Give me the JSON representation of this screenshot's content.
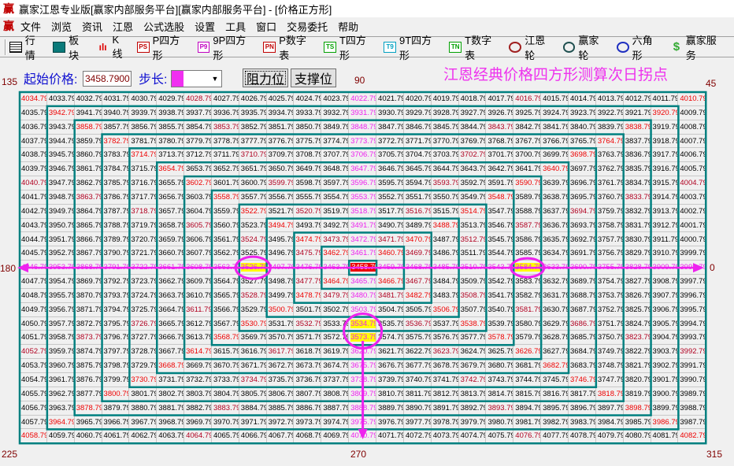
{
  "window": {
    "title": "赢家江恩专业版[赢家内部服务平台][赢家内部服务平台] - [价格正方形]",
    "logo": "赢"
  },
  "menu": [
    "文件",
    "浏览",
    "资讯",
    "江恩",
    "公式选股",
    "设置",
    "工具",
    "窗口",
    "交易委托",
    "帮助"
  ],
  "toolbar": [
    {
      "label": "行情",
      "icon": "quote-grid-icon",
      "badge": ""
    },
    {
      "label": "板块",
      "icon": "blocks-icon",
      "badge": ""
    },
    {
      "label": "K线",
      "icon": "candlestick-icon",
      "badge": ""
    },
    {
      "label": "P四方形",
      "icon": "ps-badge-icon",
      "badge": "PS",
      "color": "#c00000"
    },
    {
      "label": "9P四方形",
      "icon": "p9-badge-icon",
      "badge": "P9",
      "color": "#c000c0"
    },
    {
      "label": "P数字表",
      "icon": "pn-badge-icon",
      "badge": "PN",
      "color": "#c00000"
    },
    {
      "label": "T四方形",
      "icon": "ts-badge-icon",
      "badge": "TS",
      "color": "#00a000"
    },
    {
      "label": "9T四方形",
      "icon": "t9-badge-icon",
      "badge": "T9",
      "color": "#00a0c0"
    },
    {
      "label": "T数字表",
      "icon": "tn-badge-icon",
      "badge": "TN",
      "color": "#00a000"
    },
    {
      "label": "江恩轮",
      "icon": "gann-wheel-icon",
      "badge": ""
    },
    {
      "label": "赢家轮",
      "icon": "winner-wheel-icon",
      "badge": ""
    },
    {
      "label": "六角形",
      "icon": "hexagon-icon",
      "badge": ""
    },
    {
      "label": "赢家服务",
      "icon": "dollar-icon",
      "badge": "$"
    }
  ],
  "controls": {
    "start_price_label": "起始价格:",
    "start_price_value": "3458.7900",
    "step_label": "步长:",
    "step_color": "#f030f0",
    "resistance_button": "阻力位",
    "support_button": "支撑位"
  },
  "headline": "江恩经典价格四方形测算次日拐点",
  "angles": {
    "a135": "135",
    "a90": "90",
    "a45": "45",
    "a180": "180",
    "a0": "0",
    "a225": "225",
    "a270": "270",
    "a315": "315"
  },
  "colors": {
    "ring_border": "#008080",
    "corner": "#ee0000",
    "quarter": "#b00020",
    "axis": "#ee22ee",
    "highlight": "#ffff00",
    "center": "#ee0000"
  },
  "highlighted": [
    "3526.79",
    "3584.79",
    "3534.79",
    "3573.79"
  ],
  "center_value": "3458.79",
  "grid": [
    [
      "4034.79",
      "4033.79",
      "4032.79",
      "4031.79",
      "4030.79",
      "4029.79",
      "4028.79",
      "4027.79",
      "4026.79",
      "4025.79",
      "4024.79",
      "4023.79",
      "4022.79",
      "4021.79",
      "4020.79",
      "4019.79",
      "4018.79",
      "4017.79",
      "4016.79",
      "4015.79",
      "4014.79",
      "4013.79",
      "4012.79",
      "4011.79",
      "4010.79"
    ],
    [
      "4035.79",
      "3942.79",
      "3941.79",
      "3940.79",
      "3939.79",
      "3938.79",
      "3937.79",
      "3936.79",
      "3935.79",
      "3934.79",
      "3933.79",
      "3932.79",
      "3931.79",
      "3930.79",
      "3929.79",
      "3928.79",
      "3927.79",
      "3926.79",
      "3925.79",
      "3924.79",
      "3923.79",
      "3922.79",
      "3921.79",
      "3920.79",
      "4009.79"
    ],
    [
      "4036.79",
      "3943.79",
      "3858.79",
      "3857.79",
      "3856.79",
      "3855.79",
      "3854.79",
      "3853.79",
      "3852.79",
      "3851.79",
      "3850.79",
      "3849.79",
      "3848.79",
      "3847.79",
      "3846.79",
      "3845.79",
      "3844.79",
      "3843.79",
      "3842.79",
      "3841.79",
      "3840.79",
      "3839.79",
      "3838.79",
      "3919.79",
      "4008.79"
    ],
    [
      "4037.79",
      "3944.79",
      "3859.79",
      "3782.79",
      "3781.79",
      "3780.79",
      "3779.79",
      "3778.79",
      "3777.79",
      "3776.79",
      "3775.79",
      "3774.79",
      "3773.79",
      "3772.79",
      "3771.79",
      "3770.79",
      "3769.79",
      "3768.79",
      "3767.79",
      "3766.79",
      "3765.79",
      "3764.79",
      "3837.79",
      "3918.79",
      "4007.79"
    ],
    [
      "4038.79",
      "3945.79",
      "3860.79",
      "3783.79",
      "3714.79",
      "3713.79",
      "3712.79",
      "3711.79",
      "3710.79",
      "3709.79",
      "3708.79",
      "3707.79",
      "3706.79",
      "3705.79",
      "3704.79",
      "3703.79",
      "3702.79",
      "3701.79",
      "3700.79",
      "3699.79",
      "3698.79",
      "3763.79",
      "3836.79",
      "3917.79",
      "4006.79"
    ],
    [
      "4039.79",
      "3946.79",
      "3861.79",
      "3784.79",
      "3715.79",
      "3654.79",
      "3653.79",
      "3652.79",
      "3651.79",
      "3650.79",
      "3649.79",
      "3648.79",
      "3647.79",
      "3646.79",
      "3645.79",
      "3644.79",
      "3643.79",
      "3642.79",
      "3641.79",
      "3640.79",
      "3697.79",
      "3762.79",
      "3835.79",
      "3916.79",
      "4005.79"
    ],
    [
      "4040.79",
      "3947.79",
      "3862.79",
      "3785.79",
      "3716.79",
      "3655.79",
      "3602.79",
      "3601.79",
      "3600.79",
      "3599.79",
      "3598.79",
      "3597.79",
      "3596.79",
      "3595.79",
      "3594.79",
      "3593.79",
      "3592.79",
      "3591.79",
      "3590.79",
      "3639.79",
      "3696.79",
      "3761.79",
      "3834.79",
      "3915.79",
      "4004.79"
    ],
    [
      "4041.79",
      "3948.79",
      "3863.79",
      "3786.79",
      "3717.79",
      "3656.79",
      "3603.79",
      "3558.79",
      "3557.79",
      "3556.79",
      "3555.79",
      "3554.79",
      "3553.79",
      "3552.79",
      "3551.79",
      "3550.79",
      "3549.79",
      "3548.79",
      "3589.79",
      "3638.79",
      "3695.79",
      "3760.79",
      "3833.79",
      "3914.79",
      "4003.79"
    ],
    [
      "4042.79",
      "3949.79",
      "3864.79",
      "3787.79",
      "3718.79",
      "3657.79",
      "3604.79",
      "3559.79",
      "3522.79",
      "3521.79",
      "3520.79",
      "3519.79",
      "3518.79",
      "3517.79",
      "3516.79",
      "3515.79",
      "3514.79",
      "3547.79",
      "3588.79",
      "3637.79",
      "3694.79",
      "3759.79",
      "3832.79",
      "3913.79",
      "4002.79"
    ],
    [
      "4043.79",
      "3950.79",
      "3865.79",
      "3788.79",
      "3719.79",
      "3658.79",
      "3605.79",
      "3560.79",
      "3523.79",
      "3494.79",
      "3493.79",
      "3492.79",
      "3491.79",
      "3490.79",
      "3489.79",
      "3488.79",
      "3513.79",
      "3546.79",
      "3587.79",
      "3636.79",
      "3693.79",
      "3758.79",
      "3831.79",
      "3912.79",
      "4001.79"
    ],
    [
      "4044.79",
      "3951.79",
      "3866.79",
      "3789.79",
      "3720.79",
      "3659.79",
      "3606.79",
      "3561.79",
      "3524.79",
      "3495.79",
      "3474.79",
      "3473.79",
      "3472.79",
      "3471.79",
      "3470.79",
      "3487.79",
      "3512.79",
      "3545.79",
      "3586.79",
      "3635.79",
      "3692.79",
      "3757.79",
      "3830.79",
      "3911.79",
      "4000.79"
    ],
    [
      "4045.79",
      "3952.79",
      "3867.79",
      "3790.79",
      "3721.79",
      "3660.79",
      "3607.79",
      "3562.79",
      "3525.79",
      "3496.79",
      "3475.79",
      "3462.79",
      "3461.79",
      "3460.79",
      "3469.79",
      "3486.79",
      "3511.79",
      "3544.79",
      "3585.79",
      "3634.79",
      "3691.79",
      "3756.79",
      "3829.79",
      "3910.79",
      "3999.79"
    ],
    [
      "4046.79",
      "3953.79",
      "3868.79",
      "3791.79",
      "3722.79",
      "3661.79",
      "3608.79",
      "3563.79",
      "3526.79",
      "3497.79",
      "3476.79",
      "3463.79",
      "3458.79",
      "3459.79",
      "3468.79",
      "3485.79",
      "3510.79",
      "3543.79",
      "3584.79",
      "3633.79",
      "3690.79",
      "3755.79",
      "3828.79",
      "3909.79",
      "3998.79"
    ],
    [
      "4047.79",
      "3954.79",
      "3869.79",
      "3792.79",
      "3723.79",
      "3662.79",
      "3609.79",
      "3564.79",
      "3527.79",
      "3498.79",
      "3477.79",
      "3464.79",
      "3465.79",
      "3466.79",
      "3467.79",
      "3484.79",
      "3509.79",
      "3542.79",
      "3583.79",
      "3632.79",
      "3689.79",
      "3754.79",
      "3827.79",
      "3908.79",
      "3997.79"
    ],
    [
      "4048.79",
      "3955.79",
      "3870.79",
      "3793.79",
      "3724.79",
      "3663.79",
      "3610.79",
      "3565.79",
      "3528.79",
      "3499.79",
      "3478.79",
      "3479.79",
      "3480.79",
      "3481.79",
      "3482.79",
      "3483.79",
      "3508.79",
      "3541.79",
      "3582.79",
      "3631.79",
      "3688.79",
      "3753.79",
      "3826.79",
      "3907.79",
      "3996.79"
    ],
    [
      "4049.79",
      "3956.79",
      "3871.79",
      "3794.79",
      "3725.79",
      "3664.79",
      "3611.79",
      "3566.79",
      "3529.79",
      "3500.79",
      "3501.79",
      "3502.79",
      "3503.79",
      "3504.79",
      "3505.79",
      "3506.79",
      "3507.79",
      "3540.79",
      "3581.79",
      "3630.79",
      "3687.79",
      "3752.79",
      "3825.79",
      "3906.79",
      "3995.79"
    ],
    [
      "4050.79",
      "3957.79",
      "3872.79",
      "3795.79",
      "3726.79",
      "3665.79",
      "3612.79",
      "3567.79",
      "3530.79",
      "3531.79",
      "3532.79",
      "3533.79",
      "3534.79",
      "3535.79",
      "3536.79",
      "3537.79",
      "3538.79",
      "3539.79",
      "3580.79",
      "3629.79",
      "3686.79",
      "3751.79",
      "3824.79",
      "3905.79",
      "3994.79"
    ],
    [
      "4051.79",
      "3958.79",
      "3873.79",
      "3796.79",
      "3727.79",
      "3666.79",
      "3613.79",
      "3568.79",
      "3569.79",
      "3570.79",
      "3571.79",
      "3572.79",
      "3573.79",
      "3574.79",
      "3575.79",
      "3576.79",
      "3577.79",
      "3578.79",
      "3579.79",
      "3628.79",
      "3685.79",
      "3750.79",
      "3823.79",
      "3904.79",
      "3993.79"
    ],
    [
      "4052.79",
      "3959.79",
      "3874.79",
      "3797.79",
      "3728.79",
      "3667.79",
      "3614.79",
      "3615.79",
      "3616.79",
      "3617.79",
      "3618.79",
      "3619.79",
      "3620.79",
      "3621.79",
      "3622.79",
      "3623.79",
      "3624.79",
      "3625.79",
      "3626.79",
      "3627.79",
      "3684.79",
      "3749.79",
      "3822.79",
      "3903.79",
      "3992.79"
    ],
    [
      "4053.79",
      "3960.79",
      "3875.79",
      "3798.79",
      "3729.79",
      "3668.79",
      "3669.79",
      "3670.79",
      "3671.79",
      "3672.79",
      "3673.79",
      "3674.79",
      "3675.79",
      "3676.79",
      "3677.79",
      "3678.79",
      "3679.79",
      "3680.79",
      "3681.79",
      "3682.79",
      "3683.79",
      "3748.79",
      "3821.79",
      "3902.79",
      "3991.79"
    ],
    [
      "4054.79",
      "3961.79",
      "3876.79",
      "3799.79",
      "3730.79",
      "3731.79",
      "3732.79",
      "3733.79",
      "3734.79",
      "3735.79",
      "3736.79",
      "3737.79",
      "3738.79",
      "3739.79",
      "3740.79",
      "3741.79",
      "3742.79",
      "3743.79",
      "3744.79",
      "3745.79",
      "3746.79",
      "3747.79",
      "3820.79",
      "3901.79",
      "3990.79"
    ],
    [
      "4055.79",
      "3962.79",
      "3877.79",
      "3800.79",
      "3801.79",
      "3802.79",
      "3803.79",
      "3804.79",
      "3805.79",
      "3806.79",
      "3807.79",
      "3808.79",
      "3809.79",
      "3810.79",
      "3811.79",
      "3812.79",
      "3813.79",
      "3814.79",
      "3815.79",
      "3816.79",
      "3817.79",
      "3818.79",
      "3819.79",
      "3900.79",
      "3989.79"
    ],
    [
      "4056.79",
      "3963.79",
      "3878.79",
      "3879.79",
      "3880.79",
      "3881.79",
      "3882.79",
      "3883.79",
      "3884.79",
      "3885.79",
      "3886.79",
      "3887.79",
      "3888.79",
      "3889.79",
      "3890.79",
      "3891.79",
      "3892.79",
      "3893.79",
      "3894.79",
      "3895.79",
      "3896.79",
      "3897.79",
      "3898.79",
      "3899.79",
      "3988.79"
    ],
    [
      "4057.79",
      "3964.79",
      "3965.79",
      "3966.79",
      "3967.79",
      "3968.79",
      "3969.79",
      "3970.79",
      "3971.79",
      "3972.79",
      "3973.79",
      "3974.79",
      "3975.79",
      "3976.79",
      "3977.79",
      "3978.79",
      "3979.79",
      "3980.79",
      "3981.79",
      "3982.79",
      "3983.79",
      "3984.79",
      "3985.79",
      "3986.79",
      "3987.79"
    ],
    [
      "4058.79",
      "4059.79",
      "4060.79",
      "4061.79",
      "4062.79",
      "4063.79",
      "4064.79",
      "4065.79",
      "4066.79",
      "4067.79",
      "4068.79",
      "4069.79",
      "4070.79",
      "4071.79",
      "4072.79",
      "4073.79",
      "4074.79",
      "4075.79",
      "4076.79",
      "4077.79",
      "4078.79",
      "4079.79",
      "4080.79",
      "4081.79",
      "4082.79"
    ]
  ]
}
